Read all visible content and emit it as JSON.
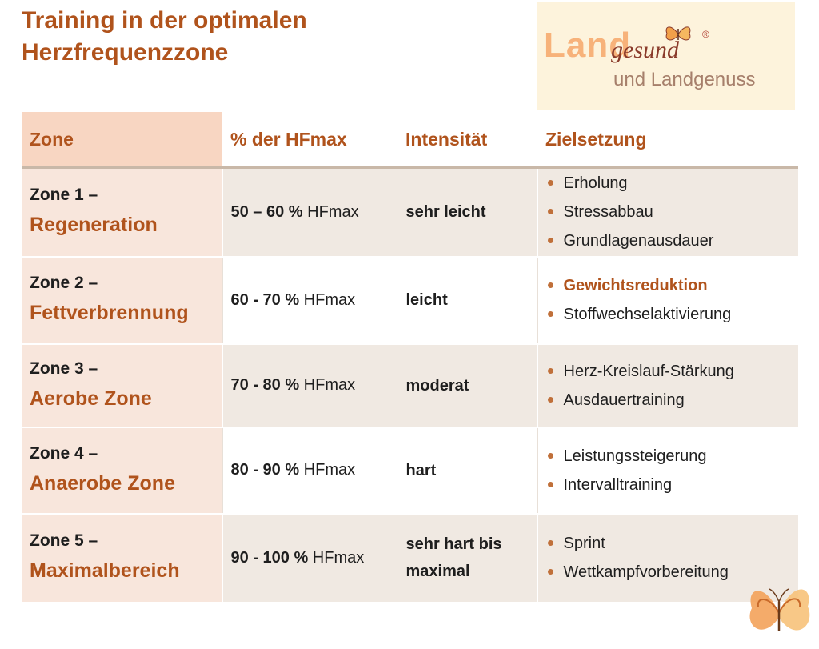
{
  "title": {
    "line1": "Training in der optimalen",
    "line2": "Herzfrequenzzone"
  },
  "logo": {
    "land": "Land",
    "gesund": "gesund",
    "subtitle": "und Landgenuss",
    "registered": "®"
  },
  "table": {
    "headers": [
      "Zone",
      "% der HFmax",
      "Intensität",
      "Zielsetzung"
    ],
    "rows": [
      {
        "zone_num": "Zone 1 –",
        "zone_name": "Regeneration",
        "pct_bold": "50 – 60 %",
        "pct_unit": "HFmax",
        "intensity": "sehr leicht",
        "goals": [
          "Erholung",
          "Stressabbau",
          "Grundlagenausdauer"
        ]
      },
      {
        "zone_num": "Zone 2 –",
        "zone_name": "Fettverbrennung",
        "pct_bold": "60 - 70 %",
        "pct_unit": "HFmax",
        "intensity": "leicht",
        "goals": [
          "Gewichtsreduktion",
          "Stoffwechselaktivierung"
        ]
      },
      {
        "zone_num": "Zone 3 –",
        "zone_name": "Aerobe Zone",
        "pct_bold": "70 - 80 %",
        "pct_unit": "HFmax",
        "intensity": "moderat",
        "goals": [
          "Herz-Kreislauf-Stärkung",
          "Ausdauertraining"
        ]
      },
      {
        "zone_num": "Zone 4 –",
        "zone_name": "Anaerobe Zone",
        "pct_bold": "80 - 90 %",
        "pct_unit": "HFmax",
        "intensity": "hart",
        "goals": [
          "Leistungssteigerung",
          "Intervalltraining"
        ]
      },
      {
        "zone_num": "Zone 5 –",
        "zone_name": "Maximalbereich",
        "pct_bold": "90 - 100 %",
        "pct_unit": "HFmax",
        "intensity": "sehr hart bis maximal",
        "goals": [
          "Sprint",
          "Wettkampfvorbereitung"
        ]
      }
    ]
  },
  "colors": {
    "accent": "#b0531c",
    "header_zone_bg": "#f8d6c2",
    "row_alt_bg": "#f0e9e2",
    "bullet": "#c0703a"
  },
  "icons": {
    "logo_butterfly": "butterfly-icon",
    "corner_butterfly": "butterfly-icon"
  }
}
